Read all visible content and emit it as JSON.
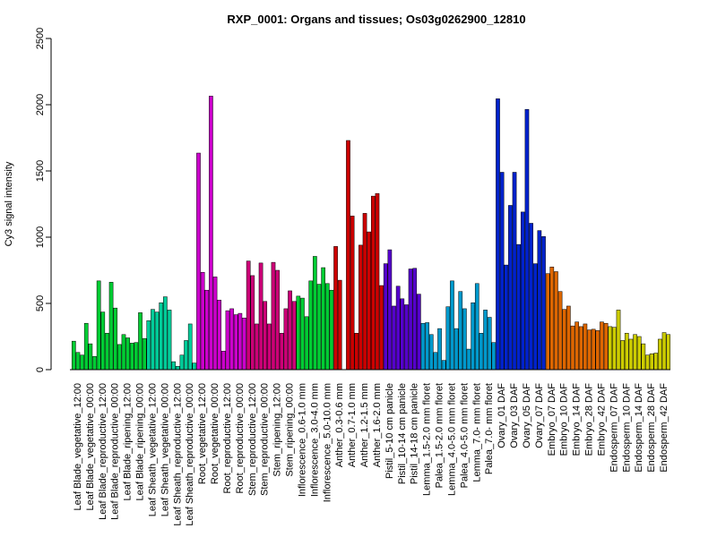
{
  "chart_data": {
    "type": "bar",
    "title": "RXP_0001: Organs and tissues; Os03g0262900_12810",
    "xlabel": "",
    "ylabel": "Cy3 signal intensity",
    "ylim": [
      0,
      2500
    ],
    "yticks": [
      0,
      500,
      1000,
      1500,
      2000,
      2500
    ],
    "grid": false,
    "categories": [
      "Leaf Blade_vegetative_12:00",
      "Leaf Blade_vegetative_00:00",
      "Leaf Blade_reproductive_12:00",
      "Leaf Blade_reproductive_00:00",
      "Leaf Blade_ripening_12:00",
      "Leaf Blade_ripening_00:00",
      "Leaf Sheath_vegetative_12:00",
      "Leaf Sheath_vegetative_00:00",
      "Leaf Sheath_reproductive_12:00",
      "Leaf Sheath_reproductive_00:00",
      "Root_vegetative_12:00",
      "Root_vegetative_00:00",
      "Root_reproductive_12:00",
      "Root_reproductive_00:00",
      "Stem_reproductive_12:00",
      "Stem_reproductive_00:00",
      "Stem_ripening_12:00",
      "Stem_ripening_00:00",
      "Inflorescence_0.6-1.0 mm",
      "Inflorescence_3.0-4.0 mm",
      "Inflorescence_5.0-10.0 mm",
      "Anther_0.3-0.6 mm",
      "Anther_0.7-1.0 mm",
      "Anther_1.2-1.5 mm",
      "Anther_1.6-2.0 mm",
      "Pistil_5-10 cm panicle",
      "Pistil_10-14 cm panicle",
      "Pistil_14-18 cm panicle",
      "Lemma_1.5-2.0 mm floret",
      "Palea_1.5-2.0 mm floret",
      "Lemma_4.0-5.0 mm floret",
      "Palea_4.0-5.0 mm floret",
      "Lemma_7.0- mm floret",
      "Palea_7.0- mm floret",
      "Ovary_01 DAF",
      "Ovary_03 DAF",
      "Ovary_05 DAF",
      "Ovary_07 DAF",
      "Embryo_07 DAF",
      "Embryo_10 DAF",
      "Embryo_14 DAF",
      "Embryo_28 DAF",
      "Embryo_42 DAF",
      "Endosperm_07 DAF",
      "Endosperm_10 DAF",
      "Endosperm_14 DAF",
      "Endosperm_28 DAF",
      "Endosperm_42 DAF"
    ],
    "bars_per_category": 3,
    "values": [
      [
        215,
        130,
        110
      ],
      [
        350,
        195,
        100
      ],
      [
        670,
        435,
        275
      ],
      [
        660,
        465,
        190
      ],
      [
        265,
        240,
        200
      ],
      [
        205,
        430,
        235
      ],
      [
        370,
        455,
        435
      ],
      [
        505,
        550,
        450
      ],
      [
        60,
        25,
        110
      ],
      [
        220,
        345,
        50
      ],
      [
        1635,
        735,
        600
      ],
      [
        2065,
        700,
        525
      ],
      [
        140,
        445,
        460
      ],
      [
        415,
        425,
        390
      ],
      [
        820,
        710,
        345
      ],
      [
        805,
        515,
        345
      ],
      [
        810,
        750,
        275
      ],
      [
        460,
        595,
        515
      ],
      [
        555,
        540,
        400
      ],
      [
        670,
        855,
        645
      ],
      [
        770,
        650,
        600
      ],
      [
        930,
        675,
        0
      ],
      [
        1730,
        1160,
        275
      ],
      [
        940,
        1180,
        1040
      ],
      [
        1310,
        1330,
        635
      ],
      [
        800,
        905,
        480
      ],
      [
        630,
        535,
        490
      ],
      [
        760,
        765,
        570
      ],
      [
        350,
        355,
        265
      ],
      [
        130,
        310,
        70
      ],
      [
        475,
        670,
        310
      ],
      [
        590,
        460,
        155
      ],
      [
        505,
        650,
        275
      ],
      [
        450,
        395,
        205
      ],
      [
        2045,
        1490,
        790
      ],
      [
        1240,
        1490,
        945
      ],
      [
        1190,
        1965,
        1105
      ],
      [
        800,
        1050,
        1005
      ],
      [
        725,
        775,
        740
      ],
      [
        590,
        455,
        480
      ],
      [
        330,
        360,
        325
      ],
      [
        345,
        300,
        305
      ],
      [
        295,
        360,
        350
      ],
      [
        325,
        320,
        450
      ],
      [
        220,
        275,
        230
      ],
      [
        265,
        250,
        195
      ],
      [
        110,
        120,
        125
      ],
      [
        230,
        280,
        265
      ]
    ],
    "category_colors": [
      "#00cc33",
      "#00cc33",
      "#00cc33",
      "#00cc33",
      "#00cc33",
      "#00cc33",
      "#00cc99",
      "#00cc99",
      "#00cc99",
      "#00cc99",
      "#cc00cc",
      "#cc00cc",
      "#cc00cc",
      "#cc00cc",
      "#cc0077",
      "#cc0077",
      "#cc0077",
      "#cc0077",
      "#00cc33",
      "#00cc33",
      "#00cc33",
      "#cc0000",
      "#cc0000",
      "#cc0000",
      "#cc0000",
      "#5500cc",
      "#5500cc",
      "#5500cc",
      "#0099cc",
      "#0099cc",
      "#0099cc",
      "#0099cc",
      "#0099cc",
      "#0099cc",
      "#0022cc",
      "#0022cc",
      "#0022cc",
      "#0022cc",
      "#dd6600",
      "#dd6600",
      "#dd6600",
      "#dd6600",
      "#dd6600",
      "#cccc00",
      "#cccc00",
      "#cccc00",
      "#cccc00",
      "#cccc00"
    ]
  }
}
